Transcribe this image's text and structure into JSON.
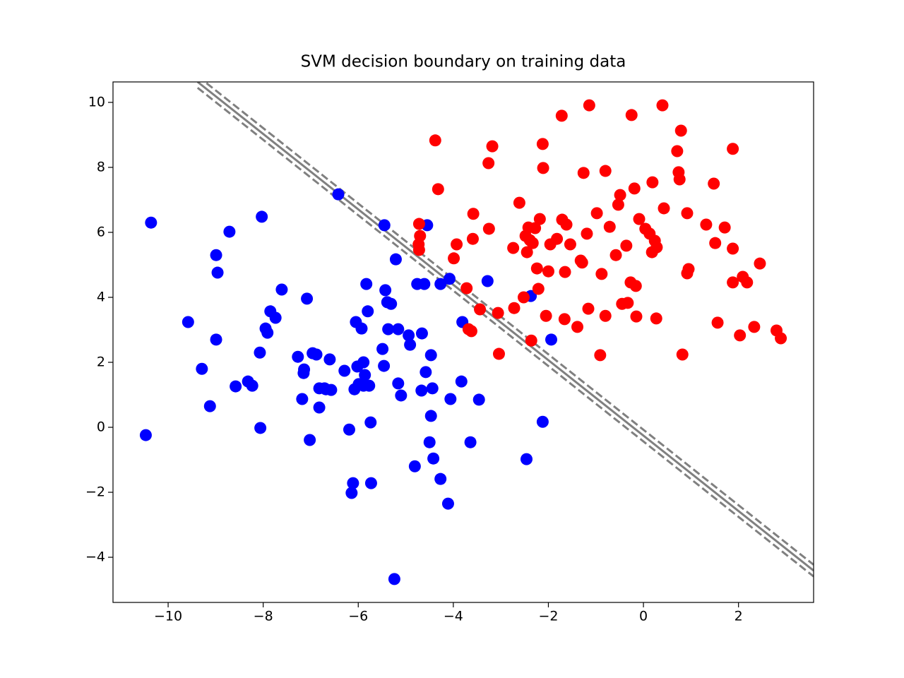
{
  "chart_data": {
    "type": "scatter",
    "title": "SVM decision boundary on training data",
    "xlim": [
      -11.16,
      3.58
    ],
    "ylim": [
      -5.39,
      10.63
    ],
    "xticks": [
      {
        "value": -10,
        "label": "−10"
      },
      {
        "value": -8,
        "label": "−8"
      },
      {
        "value": -6,
        "label": "−6"
      },
      {
        "value": -4,
        "label": "−4"
      },
      {
        "value": -2,
        "label": "−2"
      },
      0,
      2
    ],
    "yticks": [
      {
        "value": -4,
        "label": "−4"
      },
      {
        "value": -2,
        "label": "−2"
      },
      0,
      2,
      4,
      6,
      8,
      10
    ],
    "series": [
      {
        "color": "#0000ff",
        "x": [
          -10.36,
          -10.47,
          -9.58,
          -9.29,
          -9.12,
          -8.99,
          -8.96,
          -8.99,
          -8.71,
          -8.58,
          -8.32,
          -8.23,
          -8.07,
          -8.06,
          -8.03,
          -7.95,
          -7.91,
          -7.85,
          -7.74,
          -7.61,
          -7.27,
          -7.18,
          -7.14,
          -7.15,
          -7.08,
          -7.02,
          -6.96,
          -6.88,
          -6.82,
          -6.82,
          -6.71,
          -6.68,
          -6.6,
          -6.57,
          -6.42,
          -6.29,
          -6.19,
          -6.14,
          -6.11,
          -6.08,
          -6.05,
          -6.02,
          -5.99,
          -5.93,
          -5.89,
          -5.89,
          -5.86,
          -5.83,
          -5.8,
          -5.77,
          -5.74,
          -5.73,
          -5.49,
          -5.46,
          -5.45,
          -5.43,
          -5.39,
          -5.37,
          -5.31,
          -5.24,
          -5.21,
          -5.16,
          -5.16,
          -5.1,
          -4.94,
          -4.91,
          -4.81,
          -4.76,
          -4.66,
          -4.61,
          -4.58,
          -4.67,
          -4.55,
          -4.5,
          -4.47,
          -4.47,
          -4.44,
          -4.42,
          -4.27,
          -4.27,
          -4.11,
          -4.08,
          -4.06,
          -3.83,
          -3.81,
          -3.64,
          -3.46,
          -3.28,
          -2.46,
          -2.37,
          -2.12,
          -1.94
        ],
        "y": [
          6.3,
          -0.24,
          3.24,
          1.8,
          0.65,
          5.3,
          4.76,
          2.7,
          6.02,
          1.26,
          1.41,
          1.28,
          2.3,
          -0.02,
          6.48,
          3.04,
          2.91,
          3.57,
          3.37,
          4.24,
          2.17,
          0.87,
          1.78,
          1.67,
          3.96,
          -0.39,
          2.28,
          2.24,
          0.61,
          1.2,
          1.2,
          1.17,
          2.09,
          1.15,
          7.17,
          1.74,
          -0.07,
          -2.02,
          -1.72,
          1.17,
          3.24,
          1.87,
          1.33,
          3.04,
          2.0,
          1.28,
          1.61,
          4.41,
          3.57,
          1.28,
          0.15,
          -1.72,
          2.41,
          1.89,
          6.22,
          4.22,
          3.85,
          3.02,
          3.8,
          -4.67,
          5.17,
          1.35,
          3.02,
          0.98,
          2.83,
          2.54,
          -1.2,
          4.41,
          2.89,
          4.41,
          1.7,
          1.13,
          6.22,
          -0.46,
          2.22,
          0.35,
          1.2,
          -0.96,
          -1.59,
          4.41,
          -2.35,
          4.57,
          0.87,
          1.41,
          3.24,
          -0.46,
          0.85,
          4.5,
          -0.98,
          4.04,
          0.17,
          2.7
        ]
      },
      {
        "color": "#ff0000",
        "x": [
          -4.38,
          -4.32,
          -4.72,
          -4.7,
          -4.73,
          -4.72,
          -3.99,
          -3.93,
          -3.72,
          -3.59,
          -3.58,
          -3.68,
          -3.62,
          -3.44,
          -3.25,
          -3.26,
          -3.18,
          -3.06,
          -3.04,
          -2.74,
          -2.72,
          -2.61,
          -2.52,
          -2.48,
          -2.45,
          -2.42,
          -2.39,
          -2.36,
          -2.33,
          -2.28,
          -2.24,
          -2.21,
          -2.18,
          -2.11,
          -2.12,
          -2.05,
          -2.0,
          -1.96,
          -1.82,
          -1.72,
          -1.71,
          -1.66,
          -1.65,
          -1.62,
          -1.54,
          -1.39,
          -1.32,
          -1.29,
          -1.26,
          -1.19,
          -1.16,
          -1.14,
          -0.98,
          -0.91,
          -0.88,
          -0.8,
          -0.8,
          -0.71,
          -0.58,
          -0.53,
          -0.49,
          -0.45,
          -0.36,
          -0.33,
          -0.27,
          -0.25,
          -0.19,
          -0.16,
          -0.15,
          -0.09,
          0.04,
          0.13,
          0.18,
          0.19,
          0.24,
          0.27,
          0.28,
          0.4,
          0.43,
          0.71,
          0.74,
          0.76,
          0.79,
          0.82,
          0.92,
          0.95,
          0.92,
          1.32,
          1.48,
          1.51,
          1.56,
          1.71,
          1.88,
          1.88,
          1.88,
          2.03,
          2.09,
          2.18,
          2.45,
          2.33,
          2.8,
          2.89
        ],
        "y": [
          8.83,
          7.33,
          6.26,
          5.89,
          5.63,
          5.46,
          5.2,
          5.63,
          4.28,
          5.8,
          6.57,
          3.02,
          2.96,
          3.63,
          6.11,
          8.13,
          8.65,
          3.52,
          2.26,
          5.52,
          3.67,
          6.91,
          4.0,
          5.89,
          5.39,
          6.15,
          5.76,
          2.67,
          5.67,
          6.13,
          4.89,
          4.26,
          6.41,
          7.98,
          8.72,
          3.43,
          4.8,
          5.63,
          5.8,
          9.59,
          6.39,
          3.33,
          4.78,
          6.24,
          5.63,
          3.09,
          5.13,
          5.07,
          7.83,
          5.96,
          3.65,
          9.91,
          6.59,
          2.22,
          4.72,
          3.43,
          7.89,
          6.17,
          5.3,
          6.85,
          7.15,
          3.8,
          5.59,
          3.83,
          4.46,
          9.61,
          7.35,
          4.35,
          3.41,
          6.41,
          6.11,
          5.96,
          5.39,
          7.54,
          5.74,
          3.35,
          5.54,
          9.91,
          6.74,
          8.5,
          7.85,
          7.63,
          9.13,
          2.24,
          4.74,
          4.87,
          6.59,
          6.24,
          7.5,
          5.67,
          3.22,
          6.15,
          8.57,
          5.5,
          4.46,
          2.83,
          4.63,
          4.46,
          5.04,
          3.09,
          2.98,
          2.74
        ]
      }
    ],
    "lines": [
      {
        "color": "#808080",
        "style": "solid",
        "x": [
          -9.38,
          3.58
        ],
        "y": [
          10.63,
          -4.41
        ]
      },
      {
        "color": "#808080",
        "style": "dashed",
        "x": [
          -9.38,
          3.58
        ],
        "y": [
          10.81,
          -4.23
        ]
      },
      {
        "color": "#808080",
        "style": "dashed",
        "x": [
          -9.38,
          3.58
        ],
        "y": [
          10.45,
          -4.59
        ]
      }
    ]
  }
}
